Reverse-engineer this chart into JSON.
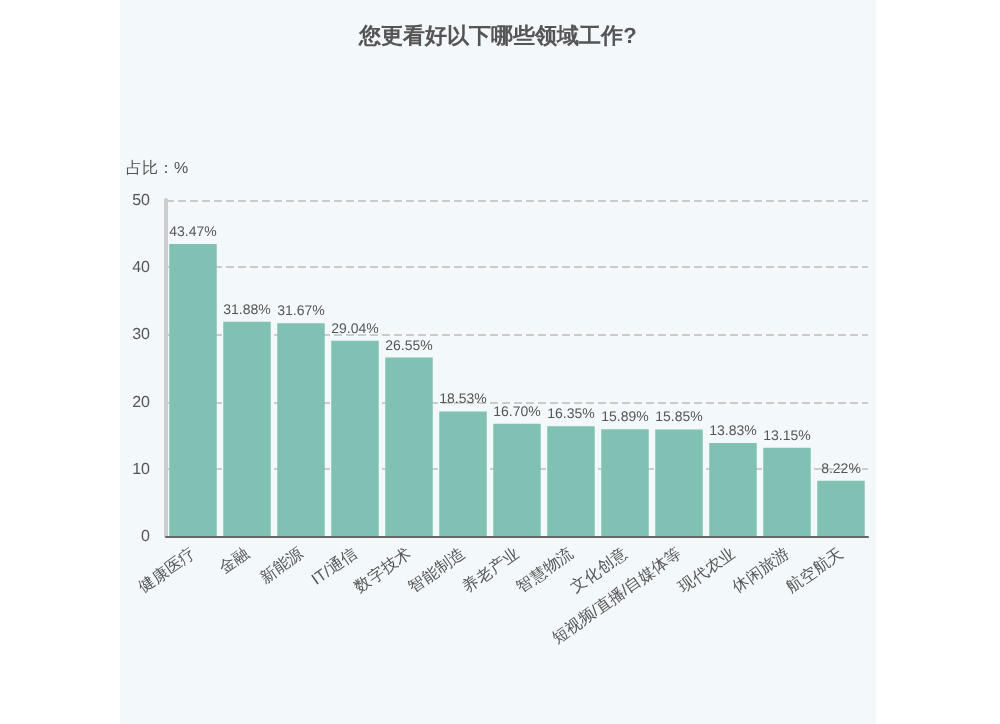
{
  "chart_data": {
    "type": "bar",
    "title": "您更看好以下哪些领域工作?",
    "ylabel": "占比：%",
    "categories": [
      "健康医疗",
      "金融",
      "新能源",
      "IT/通信",
      "数字技术",
      "智能制造",
      "养老产业",
      "智慧物流",
      "文化创意",
      "短视频/直播/自媒体等",
      "现代农业",
      "休闲旅游",
      "航空航天"
    ],
    "values": [
      43.47,
      31.88,
      31.67,
      29.04,
      26.55,
      18.53,
      16.7,
      16.35,
      15.89,
      15.85,
      13.83,
      13.15,
      8.22
    ],
    "value_labels": [
      "43.47%",
      "31.88%",
      "31.67%",
      "29.04%",
      "26.55%",
      "18.53%",
      "16.70%",
      "16.35%",
      "15.89%",
      "15.85%",
      "13.83%",
      "13.15%",
      "8.22%"
    ],
    "color": "#80c1b4",
    "ylim": [
      0,
      50
    ],
    "yticks": [
      0,
      10,
      20,
      30,
      40,
      50
    ],
    "grid": "y"
  }
}
